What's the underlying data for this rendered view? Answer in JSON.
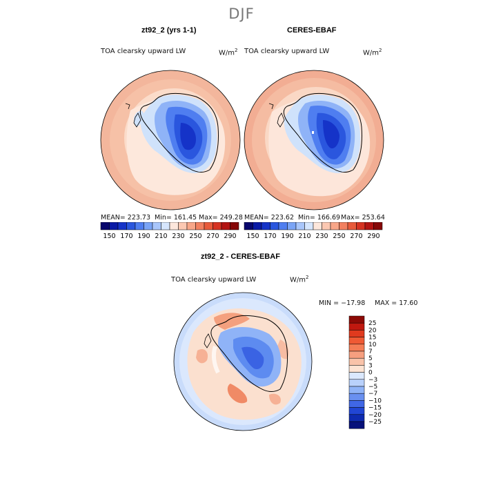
{
  "page_title": "DJF",
  "colors": {
    "ocean_light": "#fbe1d3",
    "ocean_mid": "#f4b49a",
    "land_light": "#cfe2fb",
    "land_mid": "#5c8ff0",
    "land_deep": "#1f44d9",
    "coast": "#000000"
  },
  "panels": [
    {
      "title": "zt92_2 (yrs 1-1)",
      "variable": "TOA clearsky upward LW",
      "units_label": "W/m",
      "units_exp": "2",
      "mean_text": "MEAN= 223.73",
      "min_text": "Min= 161.45",
      "max_text": "Max= 249.28"
    },
    {
      "title": "CERES-EBAF",
      "variable": "TOA clearsky upward LW",
      "units_label": "W/m",
      "units_exp": "2",
      "mean_text": "MEAN= 223.62",
      "min_text": "Min= 166.69",
      "max_text": "Max= 253.64"
    }
  ],
  "abs_colorbar": {
    "labels": [
      "150",
      "170",
      "190",
      "210",
      "230",
      "250",
      "270",
      "290"
    ],
    "colors": [
      "#08076c",
      "#0a1aa6",
      "#1533c8",
      "#2a56de",
      "#4f7ef0",
      "#7aa4f6",
      "#a9c6fb",
      "#d6e6fe",
      "#fde7dc",
      "#fcc8b2",
      "#f8a688",
      "#f2805f",
      "#e85a3a",
      "#d63221",
      "#b31412",
      "#860808"
    ]
  },
  "diff_panel": {
    "title": "zt92_2 - CERES-EBAF",
    "variable": "TOA clearsky upward LW",
    "units_label": "W/m",
    "units_exp": "2",
    "min_text": "MIN = −17.98",
    "max_text": "MAX =  17.60"
  },
  "diff_colorbar": {
    "labels": [
      "25",
      "20",
      "15",
      "10",
      "7",
      "5",
      "3",
      "0",
      "−3",
      "−5",
      "−7",
      "−10",
      "−15",
      "−20",
      "−25"
    ],
    "colors": [
      "#8c0a06",
      "#c0180f",
      "#e03a1e",
      "#ef5a34",
      "#f47d55",
      "#f69f7f",
      "#f9c3a9",
      "#fde3d2",
      "#dbe8fd",
      "#b9d1fb",
      "#8fb3f7",
      "#6990f0",
      "#4067e6",
      "#2146d4",
      "#0e2bb0",
      "#06117a"
    ]
  }
}
